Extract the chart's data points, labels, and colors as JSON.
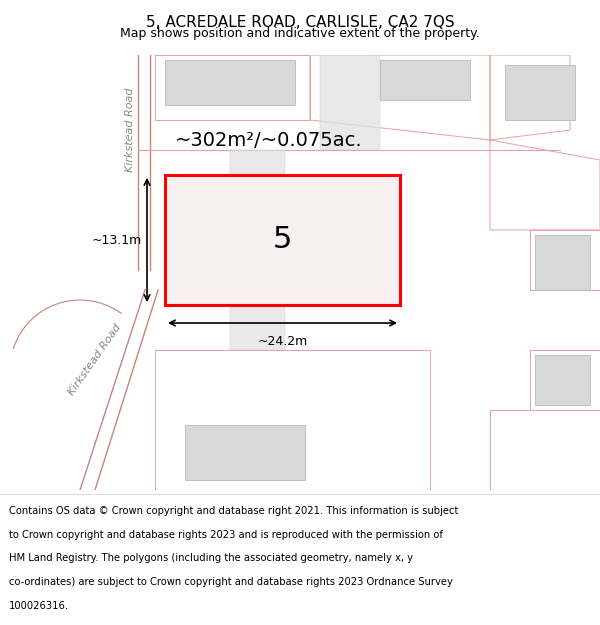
{
  "title": "5, ACREDALE ROAD, CARLISLE, CA2 7QS",
  "subtitle": "Map shows position and indicative extent of the property.",
  "footer_lines": [
    "Contains OS data © Crown copyright and database right 2021. This information is subject",
    "to Crown copyright and database rights 2023 and is reproduced with the permission of",
    "HM Land Registry. The polygons (including the associated geometry, namely x, y",
    "co-ordinates) are subject to Crown copyright and database rights 2023 Ordnance Survey",
    "100026316."
  ],
  "area_label": "~302m²/~0.075ac.",
  "width_label": "~24.2m",
  "height_label": "~13.1m",
  "house_number": "5",
  "road_label": "Kirkstead Road",
  "map_bg": "#f0efed",
  "highlight_color": "#ff0000",
  "building_fill": "#d8d8d8",
  "building_edge": "#b0b0b0",
  "road_line_color": "#e8a0a0",
  "road_line_color2": "#c88080",
  "title_fontsize": 11,
  "subtitle_fontsize": 9,
  "footer_fontsize": 7.2
}
